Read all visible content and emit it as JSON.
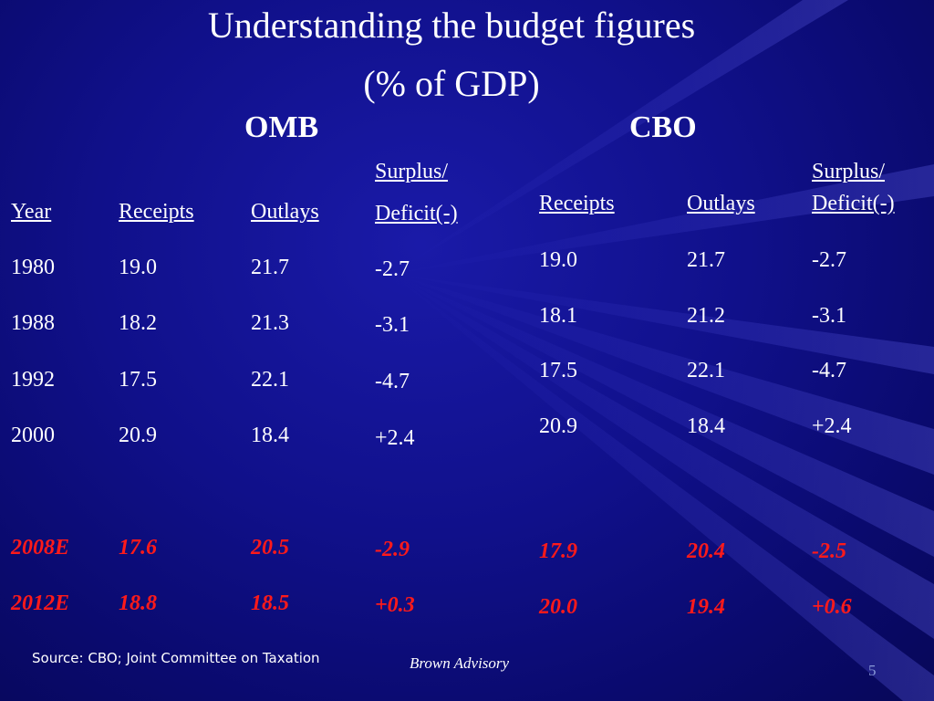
{
  "slide": {
    "title_line1": "Understanding the budget figures",
    "title_line2": "(% of GDP)",
    "page_number": "5",
    "source": "Source: CBO; Joint Committee on Taxation",
    "brand": "Brown Advisory",
    "colors": {
      "background": "#10108a",
      "text": "#ffffff",
      "projection": "#ff1a1a"
    }
  },
  "omb": {
    "heading": "OMB",
    "headers": {
      "year": "Year",
      "receipts": "Receipts",
      "outlays": "Outlays",
      "surplus_line1": "Surplus/",
      "surplus_line2": "Deficit(-)"
    },
    "rows": [
      {
        "year": "1980",
        "receipts": "19.0",
        "outlays": "21.7",
        "surplus": "-2.7"
      },
      {
        "year": "1988",
        "receipts": "18.2",
        "outlays": "21.3",
        "surplus": "-3.1"
      },
      {
        "year": "1992",
        "receipts": "17.5",
        "outlays": "22.1",
        "surplus": "-4.7"
      },
      {
        "year": "2000",
        "receipts": "20.9",
        "outlays": "18.4",
        "surplus": "+2.4"
      },
      {
        "year": "2008E",
        "receipts": "17.6",
        "outlays": "20.5",
        "surplus": "-2.9"
      },
      {
        "year": "2012E",
        "receipts": "18.8",
        "outlays": "18.5",
        "surplus": "+0.3"
      }
    ]
  },
  "cbo": {
    "heading": "CBO",
    "headers": {
      "receipts": "Receipts",
      "outlays": "Outlays",
      "surplus_line1": "Surplus/",
      "surplus_line2": "Deficit(-)"
    },
    "rows": [
      {
        "receipts": "19.0",
        "outlays": "21.7",
        "surplus": "-2.7"
      },
      {
        "receipts": "18.1",
        "outlays": "21.2",
        "surplus": "-3.1"
      },
      {
        "receipts": "17.5",
        "outlays": "22.1",
        "surplus": "-4.7"
      },
      {
        "receipts": "20.9",
        "outlays": "18.4",
        "surplus": "+2.4"
      },
      {
        "receipts": "17.9",
        "outlays": "20.4",
        "surplus": "-2.5"
      },
      {
        "receipts": "20.0",
        "outlays": "19.4",
        "surplus": "+0.6"
      }
    ]
  }
}
